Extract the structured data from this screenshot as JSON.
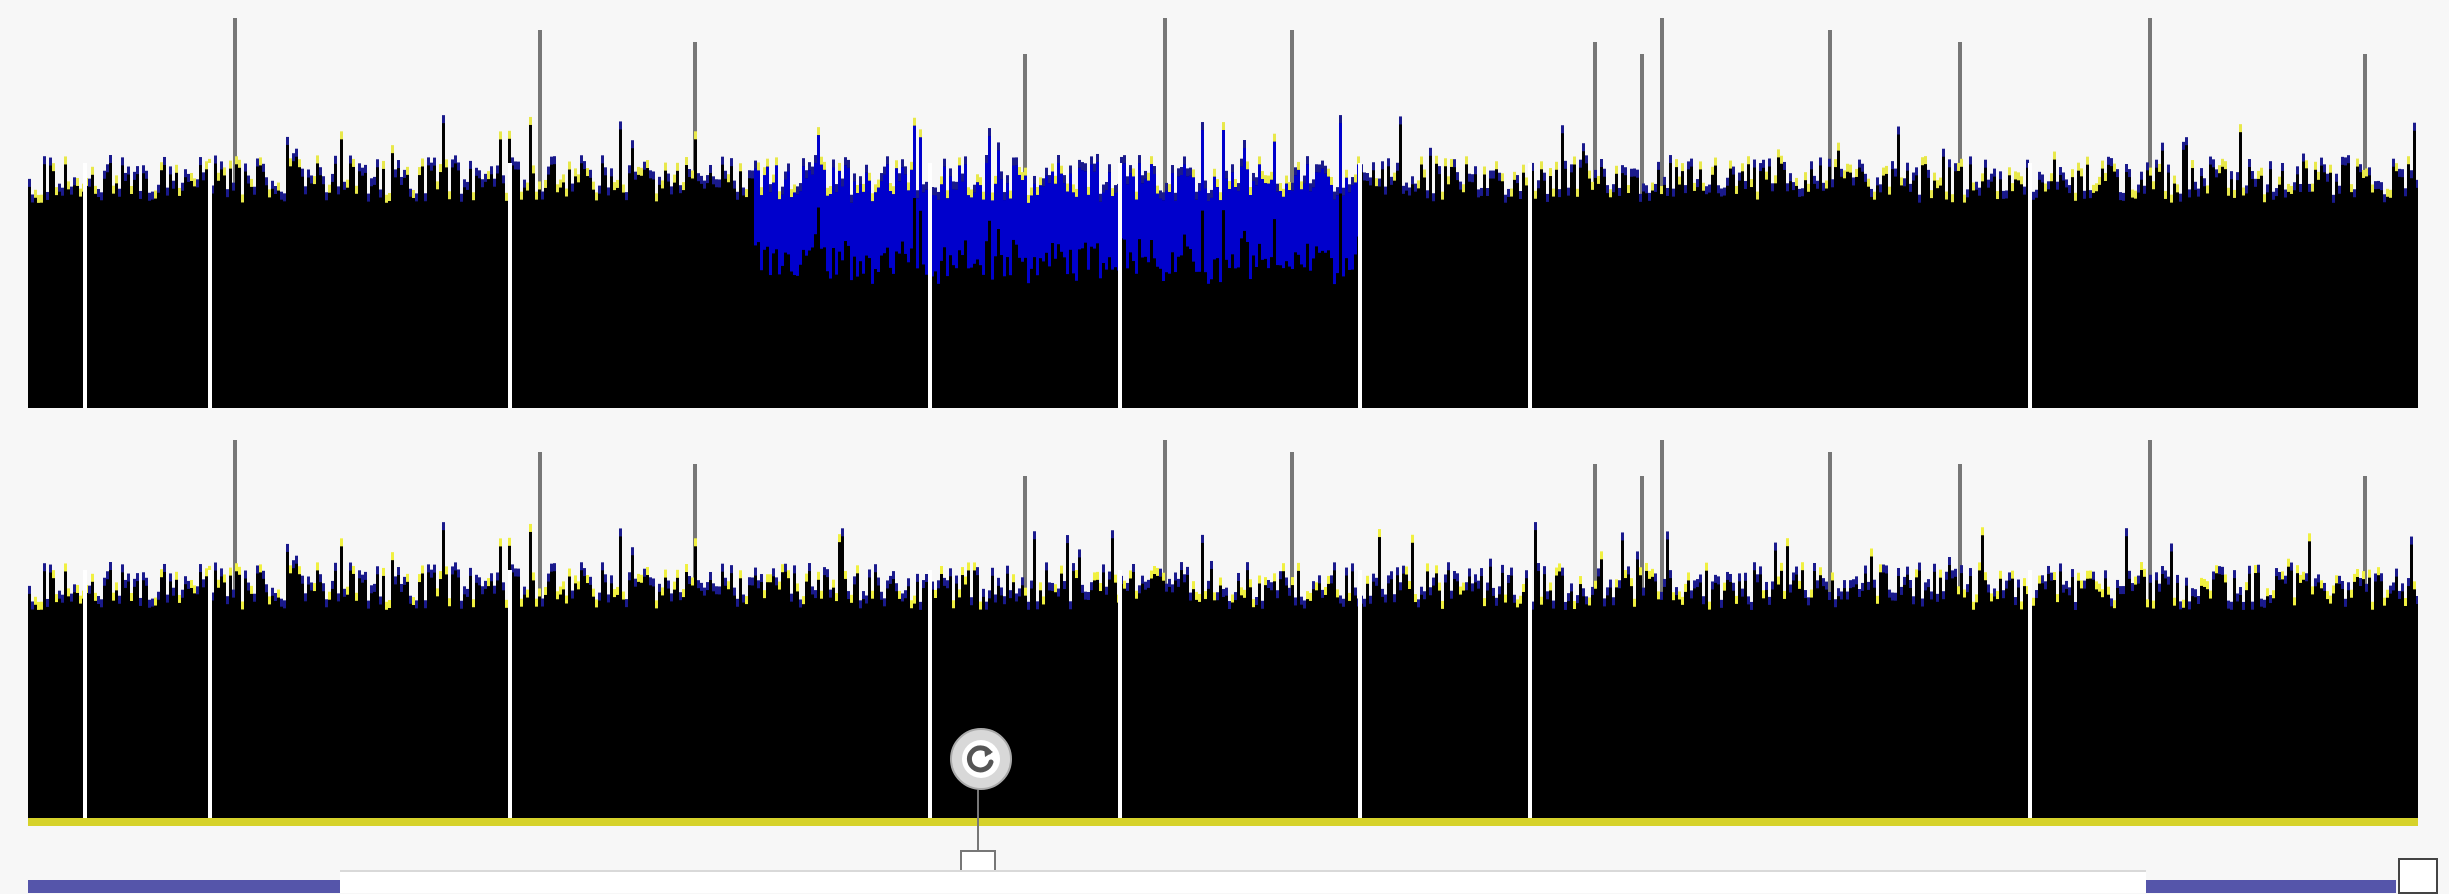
{
  "viewer": {
    "tracks": [
      {
        "id": "upper",
        "palette": {
          "fill": "#000000",
          "highlight": "#0000cc",
          "edge": "#1a1a8c",
          "accent": "#e8e84a",
          "gap": "#ffffff"
        }
      },
      {
        "id": "lower",
        "palette": {
          "fill": "#000000",
          "highlight": "#1a1acc",
          "edge": "#1a1a8c",
          "accent": "#f0f040",
          "gap": "#ffffff"
        }
      }
    ],
    "colors": {
      "background": "#f7f7f7",
      "scroll_fill": "#5555aa",
      "baseline": "#d6d22a",
      "spike": "#777777"
    },
    "refresh": {
      "icon": "refresh-icon"
    },
    "resize": {
      "icon": "resize-handle-icon"
    }
  }
}
